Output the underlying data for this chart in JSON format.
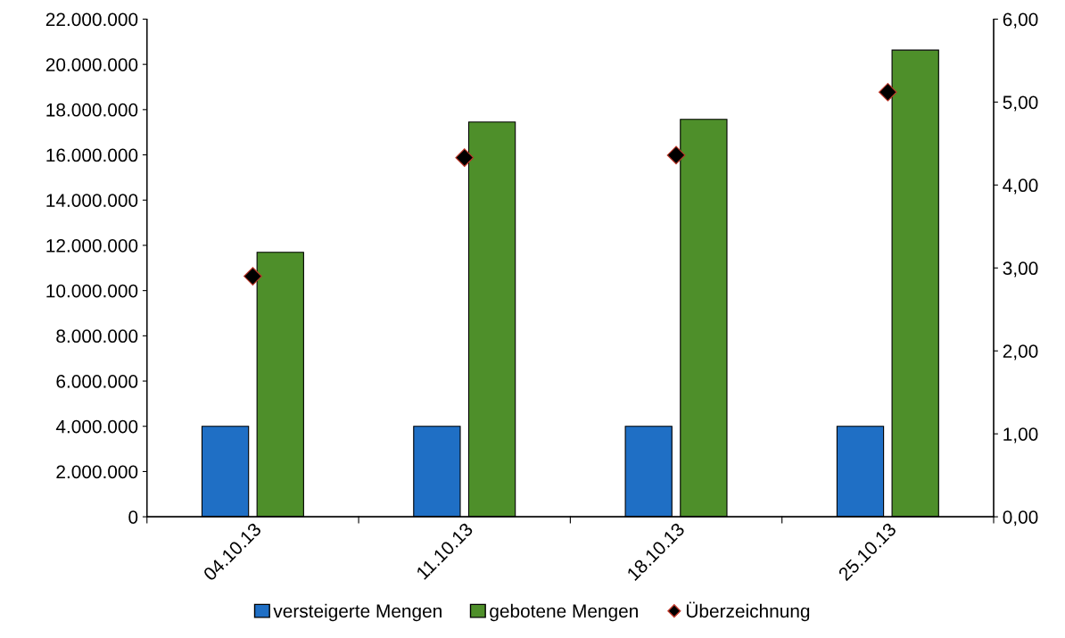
{
  "chart_data": {
    "type": "bar",
    "categories": [
      "04.10.13",
      "11.10.13",
      "18.10.13",
      "25.10.13"
    ],
    "series": [
      {
        "name": "versteigerte Mengen",
        "color": "#1f6fc5",
        "values": [
          4000000,
          4000000,
          4000000,
          4000000
        ]
      },
      {
        "name": "gebotene Mengen",
        "color": "#4e8f2a",
        "values": [
          11690000,
          17450000,
          17570000,
          20630000
        ]
      },
      {
        "name": "Überzeichnung",
        "type": "scatter",
        "axis": "y2",
        "marker": "diamond",
        "color": "#000000",
        "values": [
          2.9,
          4.33,
          4.36,
          5.12
        ]
      }
    ],
    "ylim": [
      0,
      22000000
    ],
    "yticks": [
      {
        "value": 0,
        "label": "0"
      },
      {
        "value": 2000000,
        "label": "2.000.000"
      },
      {
        "value": 4000000,
        "label": "4.000.000"
      },
      {
        "value": 6000000,
        "label": "6.000.000"
      },
      {
        "value": 8000000,
        "label": "8.000.000"
      },
      {
        "value": 10000000,
        "label": "10.000.000"
      },
      {
        "value": 12000000,
        "label": "12.000.000"
      },
      {
        "value": 14000000,
        "label": "14.000.000"
      },
      {
        "value": 16000000,
        "label": "16.000.000"
      },
      {
        "value": 18000000,
        "label": "18.000.000"
      },
      {
        "value": 20000000,
        "label": "20.000.000"
      },
      {
        "value": 22000000,
        "label": "22.000.000"
      }
    ],
    "y2lim": [
      0,
      6
    ],
    "y2ticks": [
      {
        "value": 0,
        "label": "0,00"
      },
      {
        "value": 1,
        "label": "1,00"
      },
      {
        "value": 2,
        "label": "2,00"
      },
      {
        "value": 3,
        "label": "3,00"
      },
      {
        "value": 4,
        "label": "4,00"
      },
      {
        "value": 5,
        "label": "5,00"
      },
      {
        "value": 6,
        "label": "6,00"
      }
    ],
    "grid": false,
    "legend": "bottom"
  }
}
